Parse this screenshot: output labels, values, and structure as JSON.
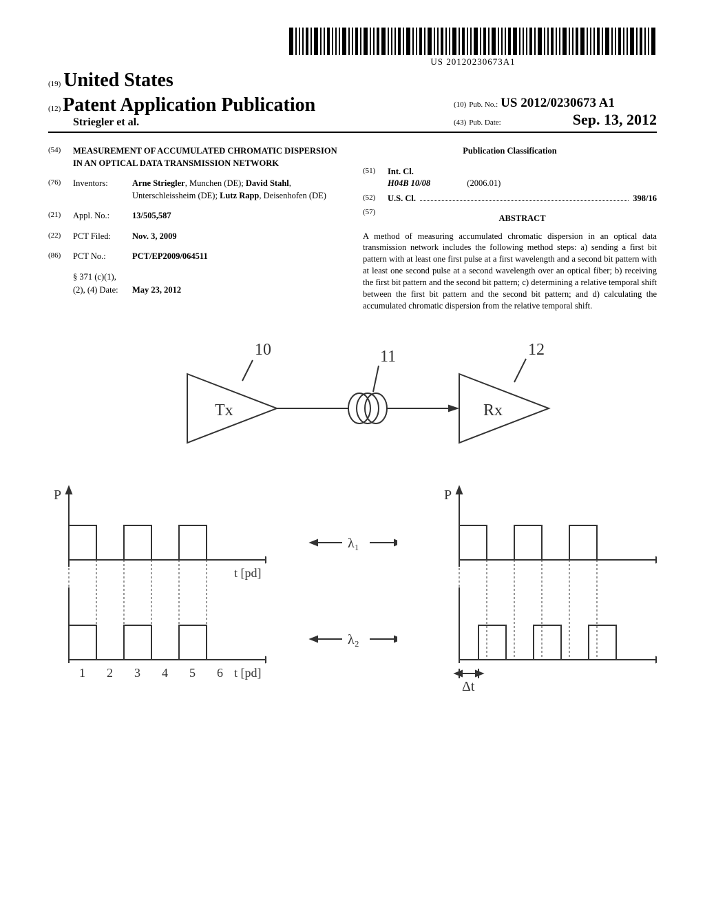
{
  "barcode_number": "US 20120230673A1",
  "country_code": "(19)",
  "country": "United States",
  "pub_kind_code": "(12)",
  "pub_kind": "Patent Application Publication",
  "authors_line": "Striegler et al.",
  "pubno_code": "(10)",
  "pubno_label": "Pub. No.:",
  "pubno": "US 2012/0230673 A1",
  "pubdate_code": "(43)",
  "pubdate_label": "Pub. Date:",
  "pubdate": "Sep. 13, 2012",
  "title_code": "(54)",
  "title": "MEASUREMENT OF ACCUMULATED CHROMATIC DISPERSION IN AN OPTICAL DATA TRANSMISSION NETWORK",
  "inventors_code": "(76)",
  "inventors_label": "Inventors:",
  "inventor1_name": "Arne Striegler",
  "inventor1_loc": ", Munchen (DE); ",
  "inventor2_name": "David Stahl",
  "inventor2_loc": ", Unterschleissheim (DE); ",
  "inventor3_name": "Lutz Rapp",
  "inventor3_loc": ", Deisenhofen (DE)",
  "applno_code": "(21)",
  "applno_label": "Appl. No.:",
  "applno": "13/505,587",
  "pctfiled_code": "(22)",
  "pctfiled_label": "PCT Filed:",
  "pctfiled": "Nov. 3, 2009",
  "pctno_code": "(86)",
  "pctno_label": "PCT No.:",
  "pctno": "PCT/EP2009/064511",
  "s371_label": "§ 371 (c)(1),",
  "s371_date_label": "(2), (4) Date:",
  "s371_date": "May 23, 2012",
  "pubclass_heading": "Publication Classification",
  "intcl_code": "(51)",
  "intcl_label": "Int. Cl.",
  "intcl_class": "H04B  10/08",
  "intcl_date": "(2006.01)",
  "uscl_code": "(52)",
  "uscl_label": "U.S. Cl.",
  "uscl_value": "398/16",
  "abstract_code": "(57)",
  "abstract_heading": "ABSTRACT",
  "abstract_text": "A method of measuring accumulated chromatic dispersion in an optical data transmission network includes the following method steps: a) sending a first bit pattern with at least one first pulse at a first wavelength and a second bit pattern with at least one second pulse at a second wavelength over an optical fiber; b) receiving the first bit pattern and the second bit pattern; c) determining a relative temporal shift between the first bit pattern and the second bit pattern; and d) calculating the accumulated chromatic dispersion from the relative temporal shift.",
  "fig": {
    "tx_label": "Tx",
    "rx_label": "Rx",
    "ref_10": "10",
    "ref_11": "11",
    "ref_12": "12",
    "lambda1": "λ₁",
    "lambda2": "λ₂",
    "p_axis": "P",
    "t_unit": "t [pd]",
    "t_axis": "t",
    "delta_t": "Δt",
    "ticks": [
      "1",
      "2",
      "3",
      "4",
      "5",
      "6"
    ]
  },
  "colors": {
    "line": "#333333",
    "text": "#000000",
    "bg": "#ffffff"
  },
  "barcode_widths": [
    3,
    1,
    1,
    1,
    2,
    1,
    3,
    1,
    1,
    2,
    1,
    1,
    1,
    3,
    1,
    1,
    2,
    1,
    3,
    1,
    1,
    2,
    3,
    1,
    1,
    1,
    2,
    1,
    3,
    1,
    1,
    2,
    1,
    3,
    1,
    1,
    2,
    1,
    1,
    3,
    1,
    2,
    1,
    1,
    3,
    1,
    2,
    1,
    3,
    1,
    1,
    1,
    2,
    3,
    1,
    1,
    1,
    2,
    1,
    3,
    1,
    1,
    2,
    1,
    1,
    3,
    1,
    1,
    2,
    3,
    1,
    1,
    1,
    2,
    1,
    3,
    1,
    1,
    2,
    1,
    1,
    3,
    1,
    2,
    1,
    1,
    3
  ]
}
